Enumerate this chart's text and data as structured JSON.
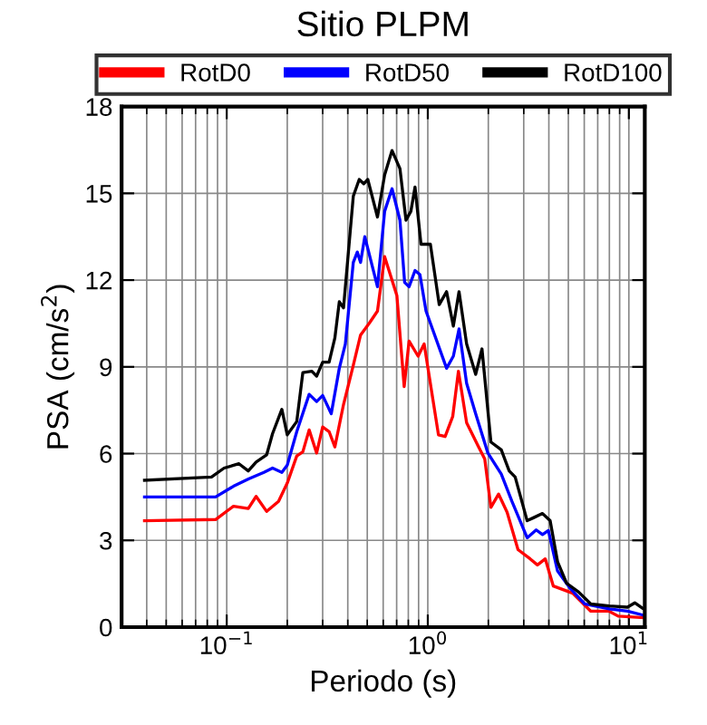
{
  "chart_data": {
    "type": "line",
    "title": "Sitio PLPM",
    "xlabel": "Periodo (s)",
    "ylabel": "PSA (cm/s$^{2}$)",
    "log": "x",
    "grid": true,
    "legend": "top",
    "line_style": "solid",
    "marker": "none",
    "xlim": [
      0.03,
      12
    ],
    "xticks": [
      {
        "value": 0.1,
        "label": "10$^{−1}$"
      },
      {
        "value": 1,
        "label": "10$^{0}$"
      },
      {
        "value": 10,
        "label": "10$^{1}$"
      }
    ],
    "ylim": [
      0,
      18
    ],
    "yticks": [
      0,
      3,
      6,
      9,
      12,
      15,
      18
    ],
    "series": [
      {
        "name": "RotD0",
        "color": "#ff0000",
        "x": [
          0.039,
          0.088,
          0.108,
          0.128,
          0.14,
          0.158,
          0.181,
          0.2,
          0.223,
          0.239,
          0.257,
          0.28,
          0.3,
          0.323,
          0.345,
          0.381,
          0.426,
          0.463,
          0.513,
          0.562,
          0.61,
          0.702,
          0.763,
          0.807,
          0.895,
          0.959,
          1.13,
          1.22,
          1.33,
          1.42,
          1.56,
          1.79,
          1.92,
          2.06,
          2.25,
          2.48,
          2.81,
          3.23,
          3.51,
          3.84,
          4.21,
          5.26,
          6.47,
          7.98,
          8.85,
          11.7
        ],
        "values": [
          3.68,
          3.72,
          4.18,
          4.1,
          4.52,
          4.0,
          4.35,
          4.98,
          5.92,
          6.06,
          6.82,
          6.02,
          6.92,
          6.76,
          6.23,
          7.7,
          9.05,
          10.1,
          10.52,
          10.93,
          12.81,
          11.46,
          8.32,
          9.89,
          9.37,
          9.79,
          6.65,
          6.59,
          7.28,
          8.85,
          7.07,
          6.23,
          5.81,
          4.14,
          4.6,
          3.97,
          2.68,
          2.36,
          2.15,
          2.36,
          1.42,
          1.17,
          0.55,
          0.55,
          0.38,
          0.33
        ]
      },
      {
        "name": "RotD50",
        "color": "#0000ff",
        "x": [
          0.039,
          0.088,
          0.108,
          0.129,
          0.153,
          0.169,
          0.188,
          0.2,
          0.223,
          0.257,
          0.28,
          0.3,
          0.331,
          0.363,
          0.389,
          0.426,
          0.446,
          0.463,
          0.486,
          0.562,
          0.61,
          0.664,
          0.727,
          0.767,
          0.807,
          0.864,
          0.914,
          0.98,
          1.24,
          1.34,
          1.43,
          1.56,
          1.73,
          1.99,
          2.32,
          2.62,
          3.12,
          3.46,
          3.72,
          3.98,
          4.42,
          5.08,
          6.03,
          7.98,
          9.84,
          11.7
        ],
        "values": [
          4.5,
          4.5,
          4.87,
          5.13,
          5.35,
          5.5,
          5.35,
          5.6,
          6.76,
          8.05,
          7.8,
          8.01,
          7.38,
          8.95,
          9.79,
          12.61,
          12.97,
          12.61,
          13.5,
          11.77,
          14.38,
          15.16,
          14.07,
          11.92,
          11.77,
          12.33,
          12.19,
          10.93,
          8.95,
          9.37,
          10.31,
          8.43,
          7.38,
          6.02,
          5.29,
          4.35,
          3.09,
          3.36,
          3.2,
          3.34,
          1.94,
          1.36,
          0.8,
          0.63,
          0.55,
          0.42
        ]
      },
      {
        "name": "RotD100",
        "color": "#000000",
        "x": [
          0.039,
          0.084,
          0.097,
          0.115,
          0.128,
          0.14,
          0.158,
          0.169,
          0.188,
          0.2,
          0.223,
          0.239,
          0.265,
          0.28,
          0.3,
          0.323,
          0.345,
          0.363,
          0.381,
          0.426,
          0.456,
          0.48,
          0.503,
          0.562,
          0.61,
          0.664,
          0.727,
          0.779,
          0.824,
          0.864,
          0.925,
          1.03,
          1.14,
          1.24,
          1.34,
          1.43,
          1.56,
          1.73,
          1.86,
          2.06,
          2.32,
          2.54,
          2.72,
          3.12,
          3.35,
          3.72,
          4.06,
          4.42,
          4.9,
          5.63,
          6.47,
          7.98,
          9.84,
          10.7,
          11.7
        ],
        "values": [
          5.08,
          5.19,
          5.5,
          5.65,
          5.4,
          5.71,
          5.96,
          6.69,
          7.53,
          6.65,
          7.11,
          8.8,
          8.85,
          8.68,
          9.16,
          9.16,
          10.0,
          11.25,
          11.04,
          14.9,
          15.48,
          15.33,
          15.48,
          14.18,
          15.64,
          16.48,
          15.85,
          14.07,
          14.38,
          15.22,
          13.24,
          13.24,
          11.15,
          11.6,
          10.41,
          11.6,
          9.79,
          8.74,
          9.62,
          6.4,
          6.13,
          5.4,
          5.19,
          3.68,
          3.78,
          3.93,
          3.68,
          2.26,
          1.52,
          1.21,
          0.8,
          0.73,
          0.69,
          0.84,
          0.65
        ]
      }
    ]
  }
}
